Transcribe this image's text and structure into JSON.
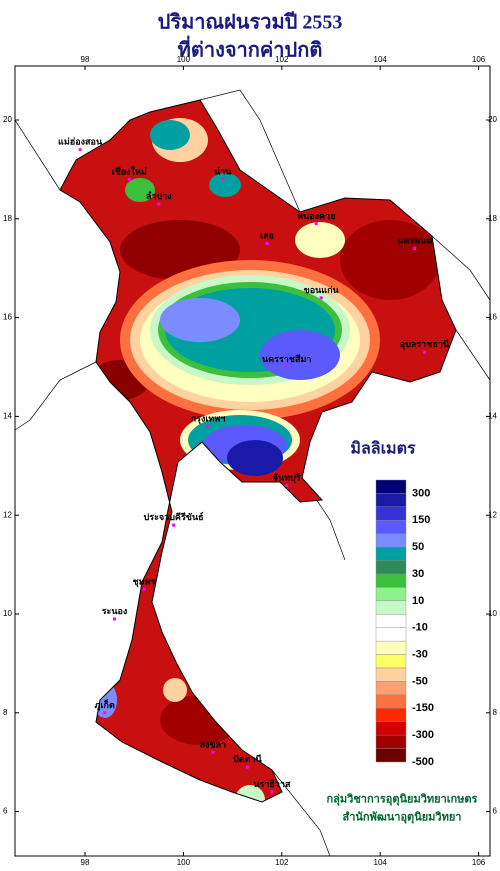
{
  "header": {
    "title": "ปริมาณฝนรวมปี 2553",
    "subtitle": "ที่ต่างจากค่าปกติ"
  },
  "map": {
    "lon_ticks": [
      98,
      100,
      102,
      104,
      106
    ],
    "lat_ticks": [
      6,
      8,
      10,
      12,
      14,
      16,
      18,
      20
    ],
    "places": [
      {
        "name": "แม่ฮ่องสอน",
        "lon": 97.9,
        "lat": 19.4
      },
      {
        "name": "เชียงใหม่",
        "lon": 98.9,
        "lat": 18.8
      },
      {
        "name": "ลำปาง",
        "lon": 99.5,
        "lat": 18.3
      },
      {
        "name": "น่าน",
        "lon": 100.8,
        "lat": 18.8
      },
      {
        "name": "หนองคาย",
        "lon": 102.7,
        "lat": 17.9
      },
      {
        "name": "นครพนม",
        "lon": 104.7,
        "lat": 17.4
      },
      {
        "name": "เลย",
        "lon": 101.7,
        "lat": 17.5
      },
      {
        "name": "ขอนแก่น",
        "lon": 102.8,
        "lat": 16.4
      },
      {
        "name": "นครราชสีมา",
        "lon": 102.1,
        "lat": 15.0
      },
      {
        "name": "อุบลราชธานี",
        "lon": 104.9,
        "lat": 15.3
      },
      {
        "name": "กรุงเทพฯ",
        "lon": 100.5,
        "lat": 13.8
      },
      {
        "name": "จันทบุรี",
        "lon": 102.1,
        "lat": 12.6
      },
      {
        "name": "ประจวบคีรีขันธ์",
        "lon": 99.8,
        "lat": 11.8
      },
      {
        "name": "ระนอง",
        "lon": 98.6,
        "lat": 9.9
      },
      {
        "name": "ชุมพร",
        "lon": 99.2,
        "lat": 10.5
      },
      {
        "name": "ภูเก็ต",
        "lon": 98.4,
        "lat": 8.0
      },
      {
        "name": "สงขลา",
        "lon": 100.6,
        "lat": 7.2
      },
      {
        "name": "ปัตตานี",
        "lon": 101.3,
        "lat": 6.9
      },
      {
        "name": "นราธิวาส",
        "lon": 101.8,
        "lat": 6.4
      }
    ]
  },
  "legend": {
    "title": "มิลลิเมตร",
    "colors": [
      "#00007a",
      "#1a1aa8",
      "#3333d6",
      "#5a5aff",
      "#7a8cff",
      "#00a0a0",
      "#2e8b57",
      "#3cbf3c",
      "#8ef08e",
      "#c8f8c8",
      "#ffffff",
      "#ffffff",
      "#ffffc0",
      "#ffff66",
      "#ffd2a0",
      "#ffa070",
      "#ff7040",
      "#ff2a00",
      "#d40000",
      "#a00000",
      "#6a0000"
    ],
    "labels": [
      "300",
      "150",
      "50",
      "30",
      "10",
      "-10",
      "-30",
      "-50",
      "-150",
      "-300",
      "-500"
    ]
  },
  "footer": {
    "line1": "กลุ่มวิชาการอุตุนิยมวิทยาเกษตร",
    "line2": "สำนักพัฒนาอุตุนิยมวิทยา"
  }
}
